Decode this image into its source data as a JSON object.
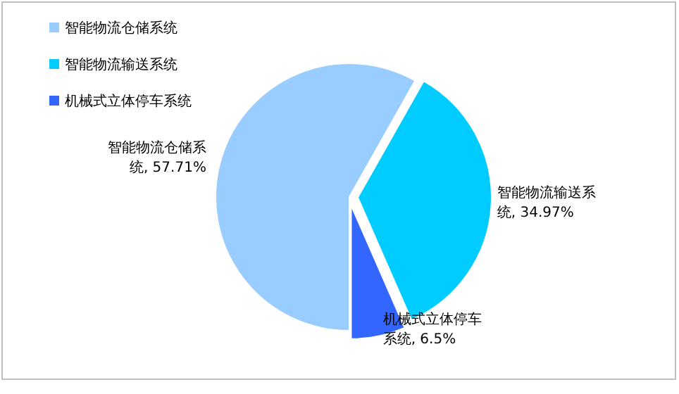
{
  "chart_data": {
    "type": "pie",
    "categories": [
      "智能物流仓储系统",
      "智能物流输送系统",
      "机械式立体停车系统"
    ],
    "values": [
      57.71,
      34.97,
      6.5
    ],
    "colors": [
      "#99ccff",
      "#00ccff",
      "#3366ff"
    ],
    "value_labels": [
      ", 57.71%",
      ", 34.97%",
      ", 6.5%"
    ],
    "legend": "top left"
  }
}
